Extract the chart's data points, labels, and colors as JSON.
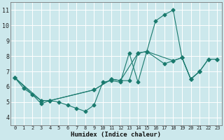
{
  "xlabel": "Humidex (Indice chaleur)",
  "bg_color": "#cce8ec",
  "grid_color": "#ffffff",
  "line_color": "#1a7a6e",
  "xlim": [
    -0.5,
    23.5
  ],
  "ylim": [
    3.5,
    11.5
  ],
  "xticks": [
    0,
    1,
    2,
    3,
    4,
    5,
    6,
    7,
    8,
    9,
    10,
    11,
    12,
    13,
    14,
    15,
    16,
    17,
    18,
    19,
    20,
    21,
    22,
    23
  ],
  "yticks": [
    4,
    5,
    6,
    7,
    8,
    9,
    10,
    11
  ],
  "line1_x": [
    0,
    1,
    2,
    3,
    4,
    5,
    6,
    7,
    8,
    9,
    10,
    11,
    12,
    13,
    14,
    15,
    16,
    17,
    18,
    19,
    20,
    21
  ],
  "line1_y": [
    6.6,
    5.9,
    5.5,
    4.9,
    5.1,
    5.0,
    4.8,
    4.6,
    4.4,
    4.8,
    6.3,
    6.4,
    6.3,
    8.2,
    6.3,
    8.3,
    10.3,
    10.7,
    11.0,
    7.9,
    6.5,
    7.0
  ],
  "line2_x": [
    0,
    2,
    3,
    4,
    9,
    11,
    12,
    13,
    14,
    15,
    17,
    18,
    19,
    20,
    21,
    22,
    23
  ],
  "line2_y": [
    6.6,
    5.5,
    5.1,
    5.1,
    5.8,
    6.5,
    6.4,
    6.4,
    8.2,
    8.3,
    7.5,
    7.7,
    7.9,
    6.5,
    7.0,
    7.8,
    7.8
  ],
  "line3_x": [
    0,
    3,
    4,
    9,
    11,
    12,
    14,
    15,
    18,
    19,
    20,
    21,
    22,
    23
  ],
  "line3_y": [
    6.6,
    5.1,
    5.1,
    5.8,
    6.5,
    6.4,
    8.2,
    8.3,
    7.7,
    7.9,
    6.5,
    7.0,
    7.8,
    7.8
  ]
}
